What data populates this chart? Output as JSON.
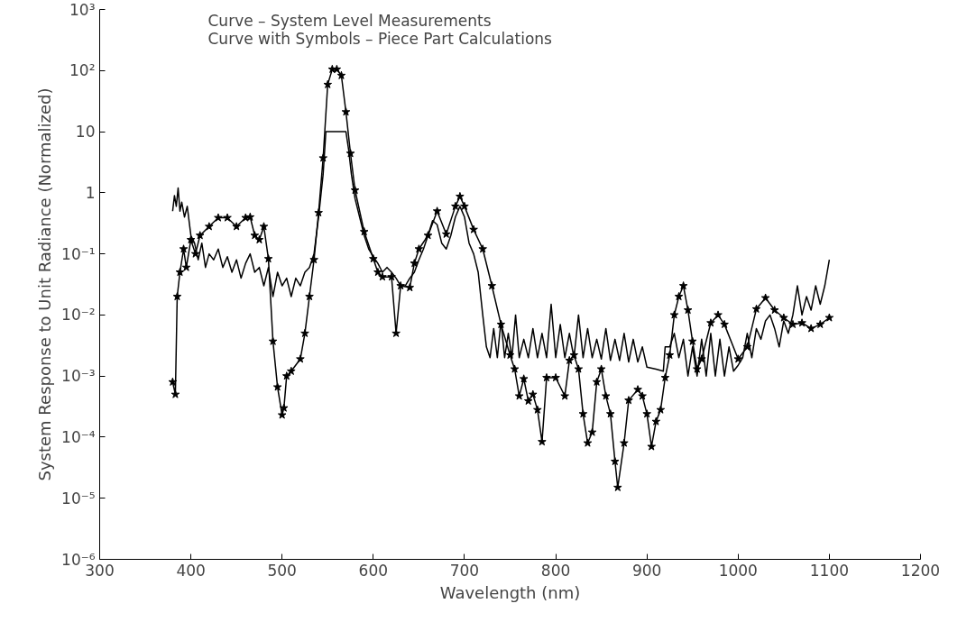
{
  "chart_data": {
    "type": "line",
    "xlabel": "Wavelength (nm)",
    "ylabel": "System Response to Unit Radiance (Normalized)",
    "annotations": [
      "Curve – System Level Measurements",
      "Curve with Symbols – Piece Part Calculations"
    ],
    "log": "y",
    "grid": false,
    "xlim": [
      300,
      1200
    ],
    "xticks": [
      300,
      400,
      500,
      600,
      700,
      800,
      900,
      1000,
      1100,
      1200
    ],
    "ylim": [
      1e-06,
      1000
    ],
    "yticks": [
      {
        "value": 1e-06,
        "label": "10⁻⁶"
      },
      {
        "value": 1e-05,
        "label": "10⁻⁵"
      },
      {
        "value": 0.0001,
        "label": "10⁻⁴"
      },
      {
        "value": 0.001,
        "label": "10⁻³"
      },
      {
        "value": 0.01,
        "label": "10⁻²"
      },
      {
        "value": 0.1,
        "label": "10⁻¹"
      },
      1,
      10,
      {
        "value": 100,
        "label": "10²"
      },
      {
        "value": 1000,
        "label": "10³"
      }
    ],
    "series": [
      {
        "color": "#000000",
        "marker": "none",
        "line_style": "solid",
        "x": [
          380,
          382,
          384,
          386,
          388,
          390,
          393,
          396,
          400,
          404,
          408,
          412,
          416,
          420,
          425,
          430,
          435,
          440,
          445,
          450,
          455,
          460,
          465,
          470,
          475,
          480,
          485,
          490,
          495,
          500,
          505,
          510,
          515,
          520,
          525,
          530,
          535,
          540,
          545,
          548,
          552,
          560,
          570,
          573,
          576,
          580,
          585,
          590,
          595,
          600,
          605,
          610,
          615,
          620,
          625,
          630,
          635,
          640,
          645,
          650,
          655,
          660,
          665,
          670,
          675,
          680,
          685,
          690,
          695,
          700,
          705,
          710,
          715,
          720,
          724,
          728,
          732,
          736,
          740,
          744,
          748,
          752,
          756,
          760,
          765,
          770,
          775,
          780,
          785,
          790,
          795,
          800,
          805,
          810,
          815,
          820,
          825,
          830,
          835,
          840,
          845,
          850,
          855,
          860,
          865,
          870,
          875,
          880,
          885,
          890,
          895,
          900,
          910,
          918,
          920,
          925,
          930,
          935,
          940,
          945,
          950,
          955,
          960,
          965,
          970,
          975,
          980,
          985,
          990,
          995,
          1000,
          1005,
          1010,
          1015,
          1020,
          1025,
          1030,
          1035,
          1040,
          1045,
          1050,
          1055,
          1060,
          1065,
          1070,
          1075,
          1080,
          1085,
          1090,
          1095,
          1100
        ],
        "values": [
          0.5,
          0.9,
          0.6,
          1.2,
          0.5,
          0.7,
          0.4,
          0.6,
          0.2,
          0.15,
          0.08,
          0.15,
          0.06,
          0.1,
          0.08,
          0.12,
          0.06,
          0.09,
          0.05,
          0.08,
          0.04,
          0.07,
          0.1,
          0.05,
          0.06,
          0.03,
          0.06,
          0.02,
          0.05,
          0.03,
          0.04,
          0.02,
          0.04,
          0.03,
          0.05,
          0.06,
          0.1,
          0.4,
          2,
          10,
          10,
          10,
          10,
          5,
          2,
          0.8,
          0.4,
          0.2,
          0.12,
          0.09,
          0.07,
          0.05,
          0.06,
          0.05,
          0.04,
          0.03,
          0.03,
          0.04,
          0.05,
          0.08,
          0.12,
          0.2,
          0.35,
          0.3,
          0.15,
          0.12,
          0.2,
          0.4,
          0.6,
          0.4,
          0.15,
          0.1,
          0.05,
          0.01,
          0.003,
          0.002,
          0.006,
          0.002,
          0.008,
          0.002,
          0.005,
          0.002,
          0.01,
          0.002,
          0.004,
          0.002,
          0.006,
          0.002,
          0.005,
          0.002,
          0.015,
          0.002,
          0.007,
          0.002,
          0.005,
          0.002,
          0.01,
          0.002,
          0.006,
          0.002,
          0.004,
          0.0019,
          0.006,
          0.0018,
          0.004,
          0.0018,
          0.005,
          0.0017,
          0.004,
          0.0017,
          0.003,
          0.0014,
          0.0013,
          0.0012,
          0.003,
          0.003,
          0.005,
          0.002,
          0.004,
          0.001,
          0.003,
          0.001,
          0.004,
          0.001,
          0.005,
          0.001,
          0.004,
          0.001,
          0.003,
          0.0012,
          0.0015,
          0.002,
          0.005,
          0.002,
          0.006,
          0.004,
          0.008,
          0.01,
          0.006,
          0.003,
          0.008,
          0.005,
          0.01,
          0.03,
          0.01,
          0.02,
          0.012,
          0.03,
          0.015,
          0.03,
          0.08
        ]
      },
      {
        "color": "#000000",
        "marker": "star",
        "line_style": "solid",
        "x": [
          380,
          383,
          385,
          388,
          392,
          395,
          400,
          405,
          410,
          420,
          430,
          440,
          450,
          460,
          465,
          470,
          475,
          480,
          485,
          490,
          495,
          500,
          502,
          505,
          510,
          520,
          525,
          530,
          535,
          540,
          545,
          550,
          555,
          560,
          565,
          570,
          575,
          580,
          590,
          600,
          605,
          610,
          620,
          625,
          630,
          640,
          645,
          650,
          660,
          670,
          680,
          690,
          695,
          700,
          710,
          720,
          730,
          740,
          750,
          755,
          760,
          765,
          770,
          775,
          780,
          785,
          790,
          800,
          810,
          815,
          820,
          825,
          830,
          835,
          840,
          845,
          850,
          855,
          860,
          865,
          868,
          875,
          880,
          890,
          895,
          900,
          905,
          910,
          915,
          920,
          925,
          930,
          935,
          940,
          945,
          950,
          955,
          960,
          970,
          978,
          985,
          1000,
          1010,
          1020,
          1030,
          1040,
          1050,
          1060,
          1070,
          1080,
          1090,
          1100
        ],
        "values": [
          0.0008,
          0.0005,
          0.02,
          0.05,
          0.12,
          0.06,
          0.17,
          0.1,
          0.2,
          0.28,
          0.39,
          0.39,
          0.28,
          0.39,
          0.4,
          0.2,
          0.17,
          0.28,
          0.083,
          0.0037,
          0.00066,
          0.00023,
          0.0003,
          0.001,
          0.0012,
          0.0019,
          0.005,
          0.02,
          0.08,
          0.47,
          3.7,
          59,
          105,
          105,
          83,
          21,
          4.4,
          1.1,
          0.23,
          0.083,
          0.05,
          0.042,
          0.042,
          0.005,
          0.03,
          0.028,
          0.07,
          0.12,
          0.2,
          0.5,
          0.21,
          0.6,
          0.87,
          0.6,
          0.25,
          0.12,
          0.03,
          0.007,
          0.0022,
          0.0013,
          0.00047,
          0.0009,
          0.00039,
          0.0005,
          0.00028,
          8.4e-05,
          0.00094,
          0.00094,
          0.00047,
          0.0018,
          0.0022,
          0.0013,
          0.00024,
          8e-05,
          0.00012,
          0.0008,
          0.0013,
          0.00047,
          0.00024,
          4e-05,
          1.5e-05,
          8e-05,
          0.0004,
          0.0006,
          0.00047,
          0.00024,
          7e-05,
          0.00018,
          0.00028,
          0.00094,
          0.0022,
          0.01,
          0.02,
          0.03,
          0.012,
          0.0037,
          0.0013,
          0.0019,
          0.0074,
          0.01,
          0.007,
          0.0019,
          0.003,
          0.0125,
          0.019,
          0.012,
          0.009,
          0.007,
          0.0074,
          0.006,
          0.007,
          0.009
        ]
      }
    ]
  }
}
